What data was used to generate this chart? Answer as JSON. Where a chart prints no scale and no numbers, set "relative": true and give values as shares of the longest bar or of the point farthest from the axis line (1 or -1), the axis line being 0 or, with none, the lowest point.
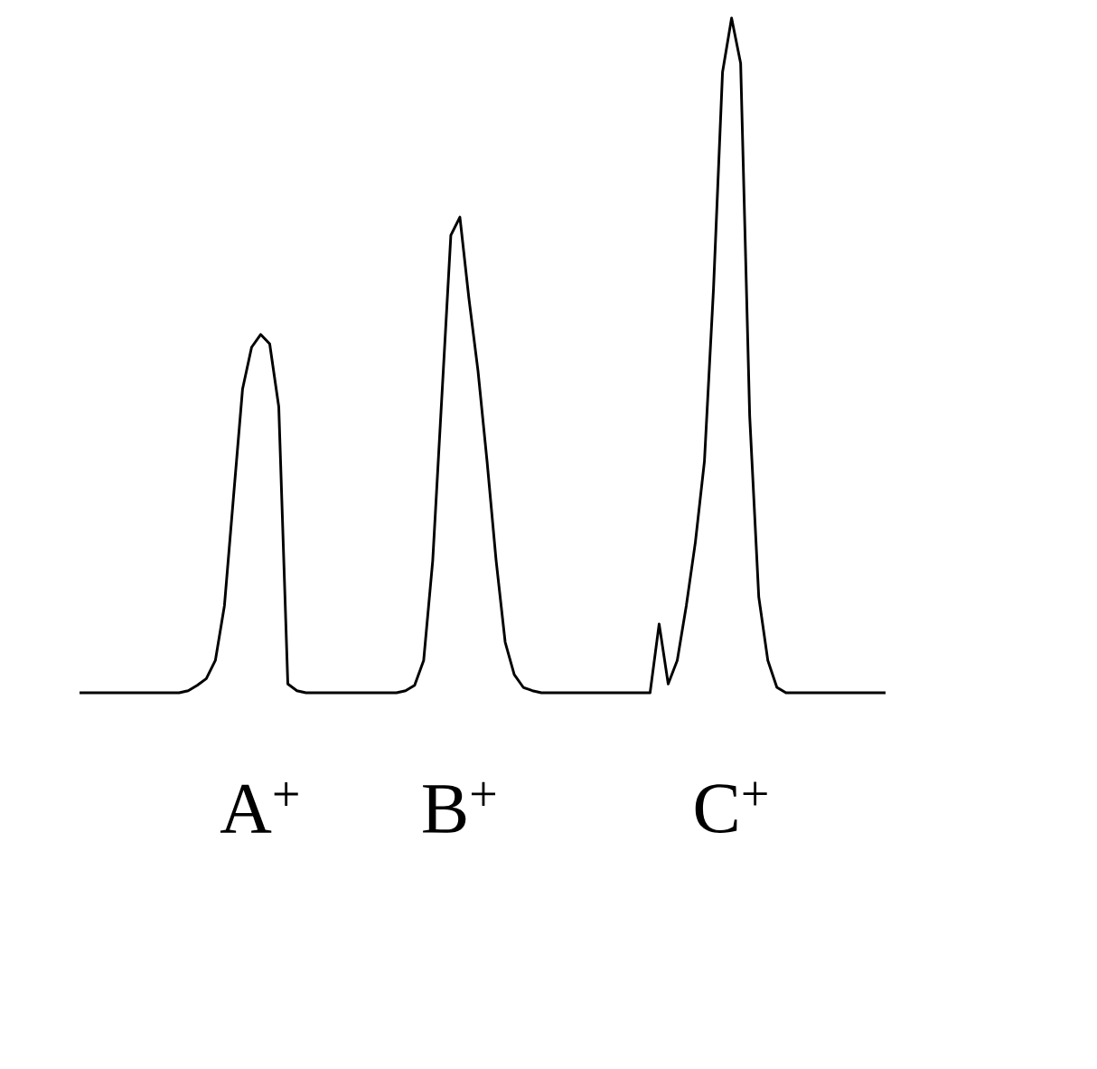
{
  "chart_data": {
    "type": "line",
    "relative": true,
    "color": "#000000",
    "categories": [
      null,
      null,
      null,
      null,
      null,
      null,
      null,
      null,
      null,
      null,
      null,
      null,
      null,
      null,
      null,
      null,
      null,
      null,
      null,
      null,
      null,
      null,
      null,
      null,
      null,
      null,
      null,
      null,
      null,
      null,
      null,
      null,
      null,
      null,
      null,
      null,
      null,
      null,
      null,
      null,
      null,
      null,
      null,
      null,
      null,
      null,
      null,
      null,
      null,
      null,
      null,
      null,
      null,
      null,
      null,
      null,
      null,
      null,
      null,
      null,
      null,
      null,
      null,
      null,
      null,
      null,
      null,
      null,
      null,
      null,
      null,
      null,
      null,
      null,
      null,
      null,
      null,
      null,
      null,
      null,
      null,
      null,
      null,
      null,
      null,
      null,
      null,
      null,
      null,
      null
    ],
    "values": [
      0,
      0,
      0,
      0,
      0,
      0,
      0,
      0,
      0,
      0,
      0,
      0,
      0.003,
      0.011,
      0.021,
      0.048,
      0.129,
      0.29,
      0.45,
      0.512,
      0.531,
      0.517,
      0.424,
      0.013,
      0.003,
      0,
      0,
      0,
      0,
      0,
      0,
      0,
      0,
      0,
      0,
      0,
      0.003,
      0.011,
      0.048,
      0.196,
      0.437,
      0.678,
      0.705,
      0.584,
      0.477,
      0.343,
      0.196,
      0.075,
      0.027,
      0.008,
      0.003,
      0,
      0,
      0,
      0,
      0,
      0,
      0,
      0,
      0,
      0,
      0,
      0,
      0,
      0.102,
      0.013,
      0.048,
      0.129,
      0.223,
      0.343,
      0.598,
      0.92,
      1,
      0.933,
      0.41,
      0.142,
      0.048,
      0.008,
      0,
      0,
      0,
      0,
      0,
      0,
      0,
      0,
      0,
      0,
      0,
      0
    ],
    "annotations": [
      "A$^{+}$",
      "B$^{+}$",
      "C$^{+}$"
    ]
  }
}
